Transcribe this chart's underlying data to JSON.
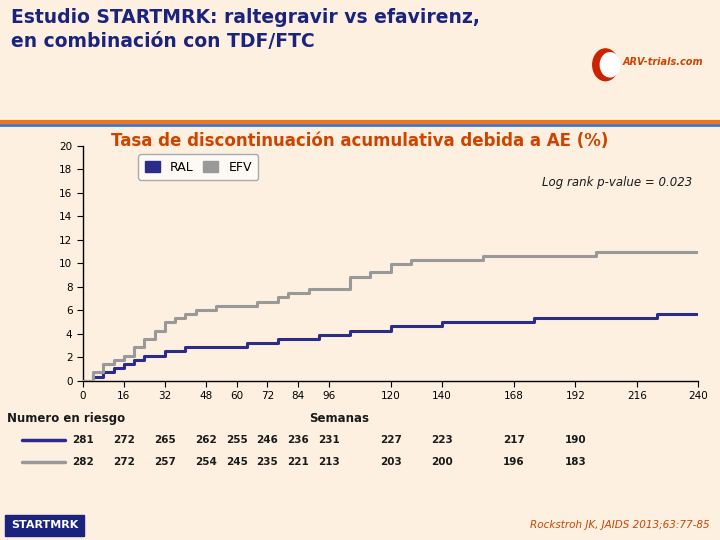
{
  "title_line1": "Estudio STARTMRK: raltegravir vs efavirenz,",
  "title_line2": "en combinación con TDF/FTC",
  "subtitle": "Tasa de discontinuación acumulativa debida a AE (%)",
  "bg_color": "#FDF0E0",
  "header_bg": "#FFFFFF",
  "title_color": "#1A237E",
  "subtitle_color": "#CC4400",
  "ral_color": "#2B2B8C",
  "efv_color": "#999999",
  "pvalue_text": "Log rank p-value = 0.023",
  "xlabel": "Semanas",
  "risk_label": "Numero en riesgo",
  "xlim": [
    0,
    240
  ],
  "ylim": [
    0,
    20
  ],
  "xticks": [
    0,
    16,
    32,
    48,
    60,
    72,
    84,
    96,
    120,
    140,
    168,
    192,
    216,
    240
  ],
  "yticks": [
    0,
    2,
    4,
    6,
    8,
    10,
    12,
    14,
    16,
    18,
    20
  ],
  "ral_x": [
    0,
    4,
    8,
    12,
    16,
    20,
    24,
    28,
    32,
    36,
    40,
    44,
    48,
    52,
    56,
    60,
    64,
    68,
    72,
    76,
    80,
    84,
    88,
    92,
    96,
    104,
    112,
    120,
    128,
    136,
    140,
    148,
    156,
    168,
    176,
    184,
    192,
    200,
    208,
    216,
    224,
    232,
    240
  ],
  "ral_y": [
    0,
    0.35,
    0.71,
    1.07,
    1.42,
    1.78,
    2.13,
    2.13,
    2.49,
    2.49,
    2.84,
    2.84,
    2.84,
    2.84,
    2.84,
    2.84,
    3.2,
    3.2,
    3.2,
    3.55,
    3.55,
    3.55,
    3.55,
    3.91,
    3.91,
    4.26,
    4.26,
    4.62,
    4.62,
    4.62,
    4.97,
    4.97,
    4.97,
    4.97,
    5.33,
    5.33,
    5.33,
    5.33,
    5.33,
    5.33,
    5.68,
    5.68,
    5.68
  ],
  "efv_x": [
    0,
    4,
    8,
    12,
    16,
    20,
    24,
    28,
    32,
    36,
    40,
    44,
    48,
    52,
    56,
    60,
    64,
    68,
    72,
    76,
    80,
    84,
    88,
    92,
    96,
    104,
    112,
    120,
    128,
    136,
    140,
    148,
    156,
    168,
    176,
    184,
    192,
    200,
    208,
    216,
    224,
    232,
    240
  ],
  "efv_y": [
    0,
    0.71,
    1.42,
    1.77,
    2.13,
    2.84,
    3.55,
    4.26,
    4.97,
    5.32,
    5.68,
    6.03,
    6.03,
    6.39,
    6.39,
    6.39,
    6.39,
    6.74,
    6.74,
    7.09,
    7.45,
    7.45,
    7.8,
    7.8,
    7.8,
    8.87,
    9.22,
    9.93,
    10.28,
    10.28,
    10.28,
    10.28,
    10.64,
    10.64,
    10.64,
    10.64,
    10.64,
    10.99,
    10.99,
    10.99,
    10.99,
    10.99,
    10.99
  ],
  "risk_x_ticks": [
    0,
    16,
    32,
    48,
    60,
    72,
    84,
    96,
    120,
    140,
    168,
    192,
    216,
    240
  ],
  "ral_risk": [
    281,
    272,
    265,
    262,
    255,
    246,
    236,
    231,
    227,
    223,
    217,
    190,
    null,
    null
  ],
  "efv_risk": [
    282,
    272,
    257,
    254,
    245,
    235,
    221,
    213,
    203,
    200,
    196,
    183,
    null,
    null
  ],
  "footnote": "Rockstroh JK, JAIDS 2013;63:77-85",
  "startmrk_text": "STARTMRK",
  "arv_text": "ARV-trials.com",
  "orange_line_color": "#E87722",
  "blue_line_color": "#4472C4"
}
